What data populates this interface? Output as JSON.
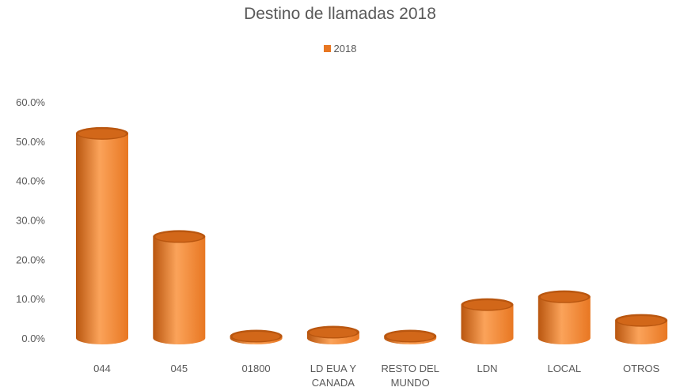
{
  "colors": {
    "bar": "#e87722",
    "bar_light": "#fba35a",
    "bar_dark": "#b9560f",
    "text": "#595959"
  },
  "chart_data": {
    "type": "bar",
    "title": "Destino de llamadas 2018",
    "legend_position": "top",
    "series": [
      {
        "name": "2018",
        "values": [
          52.0,
          25.8,
          0.5,
          1.5,
          0.5,
          8.5,
          10.5,
          4.5
        ]
      }
    ],
    "categories": [
      [
        "044"
      ],
      [
        "045"
      ],
      [
        "01800"
      ],
      [
        "LD EUA Y",
        "CANADA"
      ],
      [
        "RESTO DEL",
        "MUNDO"
      ],
      [
        "LDN"
      ],
      [
        "LOCAL"
      ],
      [
        "OTROS"
      ]
    ],
    "yticks": [
      "0.0%",
      "10.0%",
      "20.0%",
      "30.0%",
      "40.0%",
      "50.0%",
      "60.0%"
    ],
    "ylim": [
      0,
      60
    ],
    "grid": false,
    "bar_shape": "cylinder"
  }
}
